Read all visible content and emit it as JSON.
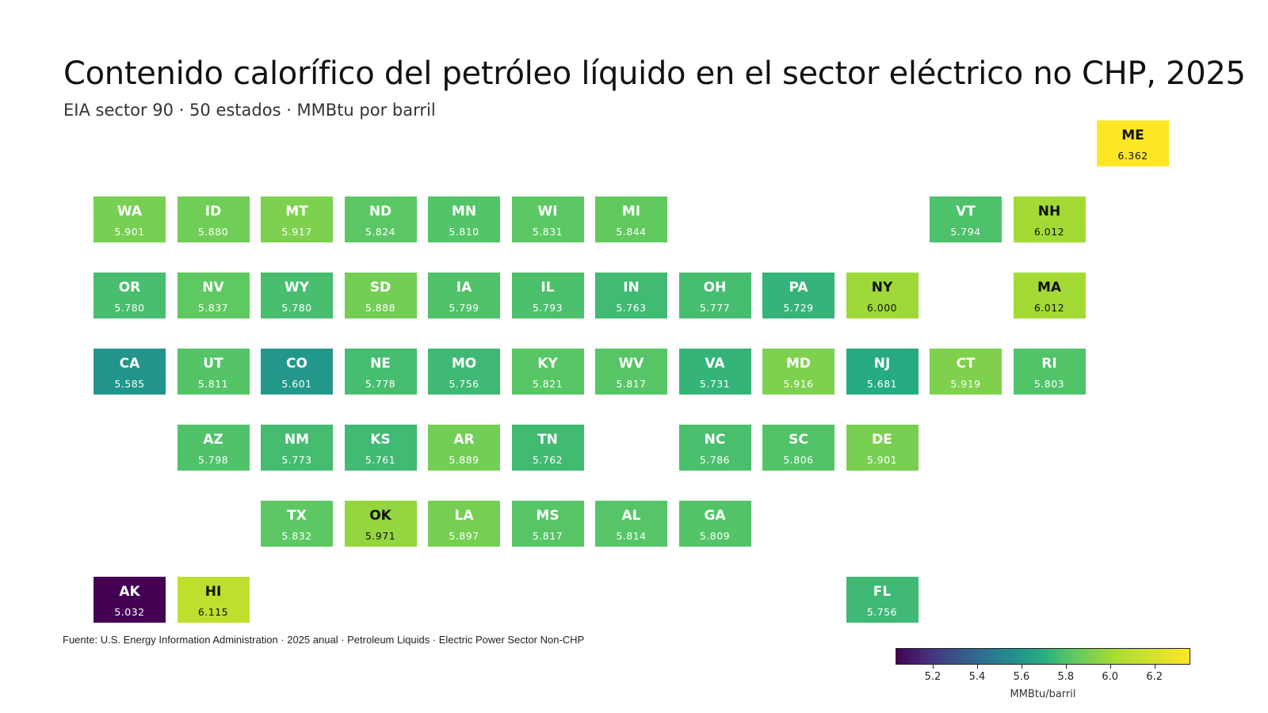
{
  "chart_data": {
    "type": "heatmap",
    "subtype": "state-tile-map",
    "title": "Contenido calorífico del petróleo líquido en el sector eléctrico no CHP, 2025",
    "subtitle": "EIA sector 90 · 50 estados · MMBtu por barril",
    "source": "Fuente: U.S. Energy Information Administration · 2025 anual · Petroleum Liquids · Electric Power Sector Non-CHP",
    "colorbar": {
      "label": "MMBtu/barril",
      "min": 5.032,
      "max": 6.362,
      "ticks": [
        "5.2",
        "5.4",
        "5.6",
        "5.8",
        "6.0",
        "6.2"
      ],
      "colormap": "viridis"
    },
    "states": [
      {
        "abbr": "ME",
        "value": "6.362",
        "col": 12,
        "row": 0
      },
      {
        "abbr": "WA",
        "value": "5.901",
        "col": 0,
        "row": 1
      },
      {
        "abbr": "ID",
        "value": "5.880",
        "col": 1,
        "row": 1
      },
      {
        "abbr": "MT",
        "value": "5.917",
        "col": 2,
        "row": 1
      },
      {
        "abbr": "ND",
        "value": "5.824",
        "col": 3,
        "row": 1
      },
      {
        "abbr": "MN",
        "value": "5.810",
        "col": 4,
        "row": 1
      },
      {
        "abbr": "WI",
        "value": "5.831",
        "col": 5,
        "row": 1
      },
      {
        "abbr": "MI",
        "value": "5.844",
        "col": 6,
        "row": 1
      },
      {
        "abbr": "VT",
        "value": "5.794",
        "col": 10,
        "row": 1
      },
      {
        "abbr": "NH",
        "value": "6.012",
        "col": 11,
        "row": 1
      },
      {
        "abbr": "OR",
        "value": "5.780",
        "col": 0,
        "row": 2
      },
      {
        "abbr": "NV",
        "value": "5.837",
        "col": 1,
        "row": 2
      },
      {
        "abbr": "WY",
        "value": "5.780",
        "col": 2,
        "row": 2
      },
      {
        "abbr": "SD",
        "value": "5.888",
        "col": 3,
        "row": 2
      },
      {
        "abbr": "IA",
        "value": "5.799",
        "col": 4,
        "row": 2
      },
      {
        "abbr": "IL",
        "value": "5.793",
        "col": 5,
        "row": 2
      },
      {
        "abbr": "IN",
        "value": "5.763",
        "col": 6,
        "row": 2
      },
      {
        "abbr": "OH",
        "value": "5.777",
        "col": 7,
        "row": 2
      },
      {
        "abbr": "PA",
        "value": "5.729",
        "col": 8,
        "row": 2
      },
      {
        "abbr": "NY",
        "value": "6.000",
        "col": 9,
        "row": 2
      },
      {
        "abbr": "MA",
        "value": "6.012",
        "col": 11,
        "row": 2
      },
      {
        "abbr": "CA",
        "value": "5.585",
        "col": 0,
        "row": 3
      },
      {
        "abbr": "UT",
        "value": "5.811",
        "col": 1,
        "row": 3
      },
      {
        "abbr": "CO",
        "value": "5.601",
        "col": 2,
        "row": 3
      },
      {
        "abbr": "NE",
        "value": "5.778",
        "col": 3,
        "row": 3
      },
      {
        "abbr": "MO",
        "value": "5.756",
        "col": 4,
        "row": 3
      },
      {
        "abbr": "KY",
        "value": "5.821",
        "col": 5,
        "row": 3
      },
      {
        "abbr": "WV",
        "value": "5.817",
        "col": 6,
        "row": 3
      },
      {
        "abbr": "VA",
        "value": "5.731",
        "col": 7,
        "row": 3
      },
      {
        "abbr": "MD",
        "value": "5.916",
        "col": 8,
        "row": 3
      },
      {
        "abbr": "NJ",
        "value": "5.681",
        "col": 9,
        "row": 3
      },
      {
        "abbr": "CT",
        "value": "5.919",
        "col": 10,
        "row": 3
      },
      {
        "abbr": "RI",
        "value": "5.803",
        "col": 11,
        "row": 3
      },
      {
        "abbr": "AZ",
        "value": "5.798",
        "col": 1,
        "row": 4
      },
      {
        "abbr": "NM",
        "value": "5.773",
        "col": 2,
        "row": 4
      },
      {
        "abbr": "KS",
        "value": "5.761",
        "col": 3,
        "row": 4
      },
      {
        "abbr": "AR",
        "value": "5.889",
        "col": 4,
        "row": 4
      },
      {
        "abbr": "TN",
        "value": "5.762",
        "col": 5,
        "row": 4
      },
      {
        "abbr": "NC",
        "value": "5.786",
        "col": 7,
        "row": 4
      },
      {
        "abbr": "SC",
        "value": "5.806",
        "col": 8,
        "row": 4
      },
      {
        "abbr": "DE",
        "value": "5.901",
        "col": 9,
        "row": 4
      },
      {
        "abbr": "TX",
        "value": "5.832",
        "col": 2,
        "row": 5
      },
      {
        "abbr": "OK",
        "value": "5.971",
        "col": 3,
        "row": 5
      },
      {
        "abbr": "LA",
        "value": "5.897",
        "col": 4,
        "row": 5
      },
      {
        "abbr": "MS",
        "value": "5.817",
        "col": 5,
        "row": 5
      },
      {
        "abbr": "AL",
        "value": "5.814",
        "col": 6,
        "row": 5
      },
      {
        "abbr": "GA",
        "value": "5.809",
        "col": 7,
        "row": 5
      },
      {
        "abbr": "AK",
        "value": "5.032",
        "col": 0,
        "row": 6
      },
      {
        "abbr": "HI",
        "value": "6.115",
        "col": 1,
        "row": 6
      },
      {
        "abbr": "FL",
        "value": "5.756",
        "col": 9,
        "row": 6
      }
    ]
  }
}
